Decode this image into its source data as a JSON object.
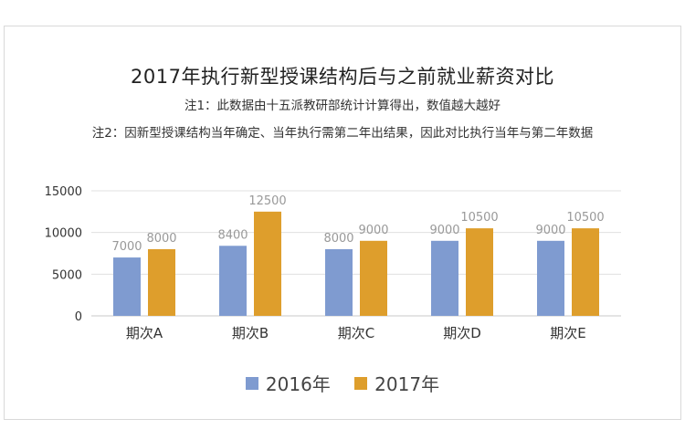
{
  "chart_data": {
    "type": "bar",
    "title": "2017年执行新型授课结构后与之前就业薪资对比",
    "notes": [
      "注1：此数据由十五派教研部统计计算得出，数值越大越好",
      "注2：因新型授课结构当年确定、当年执行需第二年出结果，因此对比执行当年与第二年数据"
    ],
    "categories": [
      "期次A",
      "期次B",
      "期次C",
      "期次D",
      "期次E"
    ],
    "series": [
      {
        "name": "2016年",
        "values": [
          7000,
          8400,
          8000,
          9000,
          9000
        ],
        "color": "#7f9bd0"
      },
      {
        "name": "2017年",
        "values": [
          8000,
          12500,
          9000,
          10500,
          10500
        ],
        "color": "#de9e2c"
      }
    ],
    "ylim": [
      0,
      15000
    ],
    "yticks": [
      0,
      5000,
      10000,
      15000
    ],
    "grid": true,
    "legend": "bottom"
  }
}
